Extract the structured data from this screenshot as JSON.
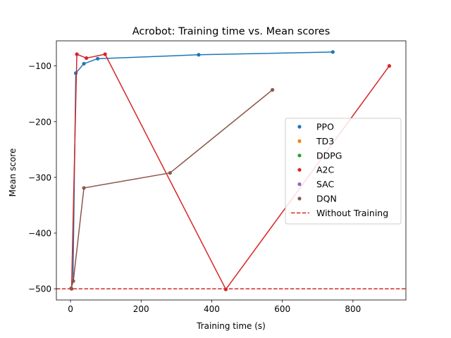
{
  "chart_data": {
    "type": "line",
    "title": "Acrobot: Training time vs. Mean scores",
    "xlabel": "Training time (s)",
    "ylabel": "Mean score",
    "xlim": [
      -40,
      950
    ],
    "ylim": [
      -520,
      -55
    ],
    "xticks": [
      0,
      200,
      400,
      600,
      800
    ],
    "yticks": [
      -500,
      -400,
      -300,
      -200,
      -100
    ],
    "grid": false,
    "legend_position": "center-right",
    "series": [
      {
        "name": "PPO",
        "color": "#1f77b4",
        "connected": true,
        "x": [
          7,
          15,
          38,
          77,
          363,
          743
        ],
        "y": [
          -486,
          -113,
          -96,
          -87,
          -80,
          -75
        ]
      },
      {
        "name": "TD3",
        "color": "#ff7f0e",
        "connected": false,
        "x": [],
        "y": []
      },
      {
        "name": "DDPG",
        "color": "#2ca02c",
        "connected": false,
        "x": [],
        "y": []
      },
      {
        "name": "A2C",
        "color": "#d62728",
        "connected": true,
        "x": [
          3,
          18,
          45,
          98,
          440,
          903
        ],
        "y": [
          -500,
          -79,
          -86,
          -79,
          -501,
          -100
        ]
      },
      {
        "name": "SAC",
        "color": "#9467bd",
        "connected": false,
        "x": [],
        "y": []
      },
      {
        "name": "DQN",
        "color": "#8c564b",
        "connected": true,
        "x": [
          2,
          8,
          38,
          282,
          572
        ],
        "y": [
          -499,
          -486,
          -319,
          -292,
          -143
        ]
      }
    ],
    "reference_line": {
      "name": "Without Training",
      "y": -500,
      "color": "#d62728",
      "style": "dashed"
    }
  }
}
